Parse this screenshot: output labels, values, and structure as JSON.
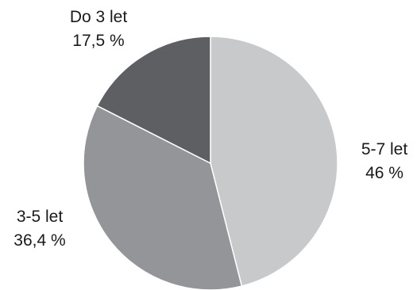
{
  "chart_data": {
    "type": "pie",
    "slices": [
      {
        "label": "5-7 let",
        "value_label": "46 %",
        "value": 46,
        "color": "#c8c9cb"
      },
      {
        "label": "3-5 let",
        "value_label": "36,4 %",
        "value": 36.4,
        "color": "#939598"
      },
      {
        "label": "Do 3 let",
        "value_label": "17,5 %",
        "value": 17.5,
        "color": "#5e5f62"
      }
    ],
    "start_angle": "12 o'clock",
    "direction": "clockwise",
    "legend": "none"
  }
}
